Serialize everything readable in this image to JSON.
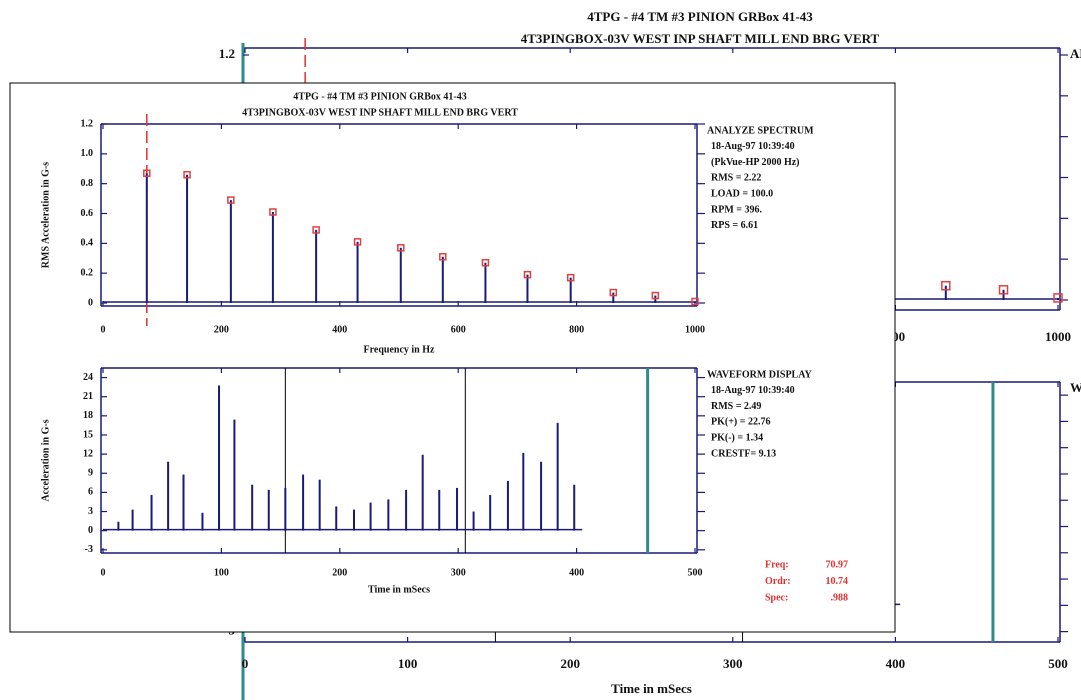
{
  "header": {
    "title": "4TPG - #4 TM #3 PINION GRBox 41-43",
    "subtitle": "4T3PINGBOX-03V  WEST INP SHAFT MILL END BRG VERT"
  },
  "chart_data": [
    {
      "type": "stem",
      "xlabel": "Frequency in Hz",
      "ylabel": "RMS Acceleration in G-s",
      "x": [
        74,
        142,
        216,
        287,
        360,
        430,
        503,
        574,
        646,
        717,
        790,
        862,
        933,
        1000
      ],
      "values": [
        0.87,
        0.86,
        0.69,
        0.61,
        0.49,
        0.41,
        0.37,
        0.31,
        0.27,
        0.19,
        0.17,
        0.07,
        0.05,
        0.01
      ],
      "color": "#1a1a7a",
      "marker_color": "#e04040",
      "xlim": [
        0,
        1000
      ],
      "ylim": [
        0,
        1.2
      ],
      "xticks": [
        0,
        200,
        400,
        600,
        800,
        1000
      ],
      "yticks": [
        0,
        0.2,
        0.4,
        0.6,
        0.8,
        {
          "value": 1,
          "label": "1.0"
        },
        1.2
      ],
      "cursor": {
        "x": 74,
        "color": "#e03030"
      },
      "info": [
        "ANALYZE SPECTRUM",
        "18-Aug-97 10:39:40",
        "(PkVue-HP 2000 Hz)",
        "RMS =  2.22",
        "LOAD = 100.0",
        "RPM =  396.",
        "RPS =  6.61"
      ]
    },
    {
      "type": "stem",
      "xlabel": "Time in mSecs",
      "ylabel": "Acceleration in G-s",
      "x": [
        13,
        25,
        41,
        55,
        68,
        84,
        98,
        111,
        126,
        140,
        154,
        169,
        183,
        197,
        212,
        226,
        241,
        256,
        270,
        284,
        299,
        313,
        327,
        342,
        355,
        370,
        384,
        398
      ],
      "values": [
        1.4,
        3.3,
        5.6,
        10.8,
        8.8,
        2.8,
        22.76,
        17.4,
        7.2,
        6.4,
        6.7,
        8.8,
        8,
        3.8,
        3.3,
        4.4,
        4.9,
        6.4,
        11.9,
        6.4,
        6.7,
        3,
        5.6,
        7.8,
        12.2,
        10.8,
        16.9,
        7.2
      ],
      "color": "#1a1a7a",
      "xlim": [
        0,
        500
      ],
      "ylim": [
        -3.5,
        25.5
      ],
      "xticks": [
        0,
        100,
        200,
        300,
        400,
        500
      ],
      "yticks": [
        -3,
        0,
        3,
        6,
        9,
        12,
        15,
        18,
        21,
        24
      ],
      "vlines": [
        {
          "x": 154,
          "color": "#000000"
        },
        {
          "x": 306,
          "color": "#000000"
        },
        {
          "x": 460,
          "color": "#2e8b8b"
        }
      ],
      "info": [
        "WAVEFORM DISPLAY",
        "18-Aug-97 10:39:40",
        "RMS =  2.49",
        "PK(+) = 22.76",
        "PK(-) = 1.34",
        "CRESTF= 9.13"
      ]
    }
  ],
  "cursor_readout": {
    "labels": [
      "Freq:",
      "Ordr:",
      "Spec:"
    ],
    "values": [
      "70.97",
      "10.74",
      ".988"
    ]
  }
}
